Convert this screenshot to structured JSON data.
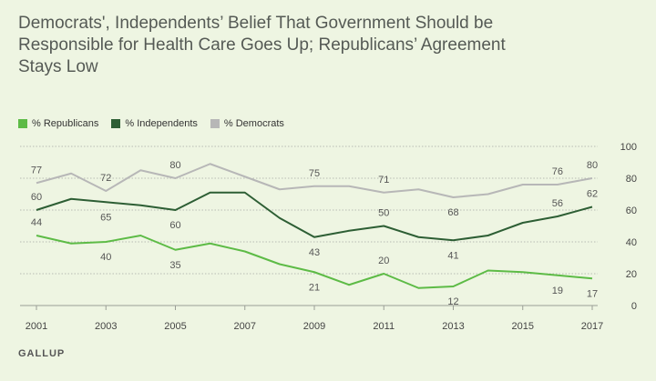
{
  "title_lines": [
    "Democrats', Independents’ Belief That Government Should be",
    "Responsible for Health Care Goes Up; Republicans’ Agreement",
    "Stays Low"
  ],
  "source": "GALLUP",
  "colors": {
    "background": "#eef5e2",
    "grid": "#b8bcb4",
    "republicans": "#5dbb46",
    "independents": "#2d5e34",
    "democrats": "#b7b7b7"
  },
  "chart_data": {
    "type": "line",
    "title": "Democrats', Independents’ Belief That Government Should be Responsible for Health Care Goes Up; Republicans’ Agreement Stays Low",
    "x": [
      2001,
      2002,
      2003,
      2004,
      2005,
      2006,
      2007,
      2008,
      2009,
      2010,
      2011,
      2012,
      2013,
      2014,
      2015,
      2016,
      2017
    ],
    "x_ticks": [
      "2001",
      "2003",
      "2005",
      "2007",
      "2009",
      "2011",
      "2013",
      "2015",
      "2017"
    ],
    "y_ticks": [
      "0",
      "20",
      "40",
      "60",
      "80",
      "100"
    ],
    "ylim": [
      0,
      100
    ],
    "grid": true,
    "legend_position": "top-left",
    "series": [
      {
        "name": "% Republicans",
        "key": "republicans",
        "values": [
          44,
          39,
          40,
          44,
          35,
          39,
          34,
          26,
          21,
          13,
          20,
          11,
          12,
          22,
          21,
          19,
          17
        ],
        "labels": [
          {
            "x": 2001,
            "value": 44,
            "text": "44",
            "pos": "above"
          },
          {
            "x": 2003,
            "value": 40,
            "text": "40",
            "pos": "below"
          },
          {
            "x": 2005,
            "value": 35,
            "text": "35",
            "pos": "below"
          },
          {
            "x": 2009,
            "value": 21,
            "text": "21",
            "pos": "below"
          },
          {
            "x": 2011,
            "value": 20,
            "text": "20",
            "pos": "above"
          },
          {
            "x": 2013,
            "value": 12,
            "text": "12",
            "pos": "below"
          },
          {
            "x": 2016,
            "value": 19,
            "text": "19",
            "pos": "below"
          },
          {
            "x": 2017,
            "value": 17,
            "text": "17",
            "pos": "below"
          }
        ]
      },
      {
        "name": "% Independents",
        "key": "independents",
        "values": [
          60,
          67,
          65,
          63,
          60,
          71,
          71,
          55,
          43,
          47,
          50,
          43,
          41,
          44,
          52,
          56,
          62
        ],
        "labels": [
          {
            "x": 2001,
            "value": 60,
            "text": "60",
            "pos": "above"
          },
          {
            "x": 2003,
            "value": 65,
            "text": "65",
            "pos": "below"
          },
          {
            "x": 2005,
            "value": 60,
            "text": "60",
            "pos": "below"
          },
          {
            "x": 2009,
            "value": 43,
            "text": "43",
            "pos": "below"
          },
          {
            "x": 2011,
            "value": 50,
            "text": "50",
            "pos": "above"
          },
          {
            "x": 2013,
            "value": 41,
            "text": "41",
            "pos": "below"
          },
          {
            "x": 2016,
            "value": 56,
            "text": "56",
            "pos": "above"
          },
          {
            "x": 2017,
            "value": 62,
            "text": "62",
            "pos": "above"
          }
        ]
      },
      {
        "name": "% Democrats",
        "key": "democrats",
        "values": [
          77,
          83,
          72,
          85,
          80,
          89,
          81,
          73,
          75,
          75,
          71,
          73,
          68,
          70,
          76,
          76,
          80
        ],
        "labels": [
          {
            "x": 2001,
            "value": 77,
            "text": "77",
            "pos": "above"
          },
          {
            "x": 2003,
            "value": 72,
            "text": "72",
            "pos": "above"
          },
          {
            "x": 2005,
            "value": 80,
            "text": "80",
            "pos": "above"
          },
          {
            "x": 2009,
            "value": 75,
            "text": "75",
            "pos": "above"
          },
          {
            "x": 2011,
            "value": 71,
            "text": "71",
            "pos": "above"
          },
          {
            "x": 2013,
            "value": 68,
            "text": "68",
            "pos": "below"
          },
          {
            "x": 2016,
            "value": 76,
            "text": "76",
            "pos": "above"
          },
          {
            "x": 2017,
            "value": 80,
            "text": "80",
            "pos": "above"
          }
        ]
      }
    ]
  }
}
